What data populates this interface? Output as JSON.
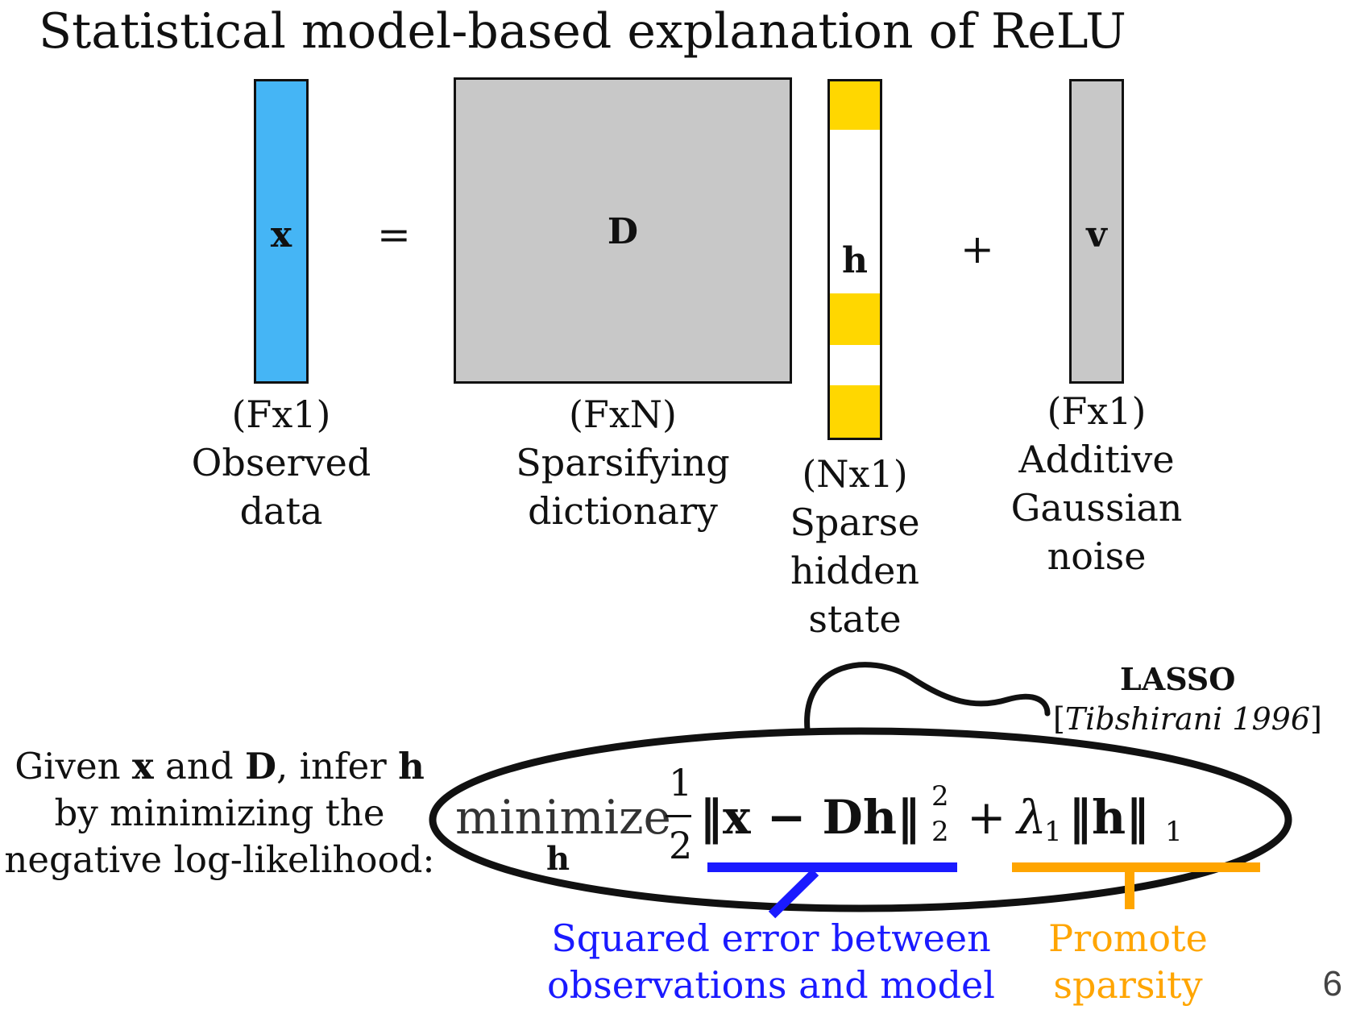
{
  "title": "Statistical model-based explanation of ReLU",
  "equation": {
    "x_label": "x",
    "equals": "=",
    "D_label": "D",
    "h_label": "h",
    "plus": "+",
    "v_label": "v"
  },
  "captions": {
    "x": {
      "dim": "(Fx1)",
      "line1": "Observed",
      "line2": "data"
    },
    "D": {
      "dim": "(FxN)",
      "line1": "Sparsifying",
      "line2": "dictionary"
    },
    "h": {
      "dim": "(Nx1)",
      "line1": "Sparse",
      "line2": "hidden",
      "line3": "state"
    },
    "v": {
      "dim": "(Fx1)",
      "line1": "Additive",
      "line2": "Gaussian",
      "line3": "noise"
    }
  },
  "given_text": {
    "given": "Given ",
    "x": "x",
    "and": " and ",
    "D": "D",
    "infer": ", infer ",
    "h": "h",
    "line2": "by minimizing the",
    "line3": "negative log-likelihood:"
  },
  "objective": {
    "minimize": "minimize",
    "subscript": "h",
    "frac_num": "1",
    "frac_den": "2",
    "term1": "‖x − Dh‖",
    "term1_sup": "2",
    "term1_sub": "2",
    "plus": "+",
    "lambda": "λ",
    "lambda_sub": "1",
    "term2": "‖h‖",
    "term2_sub": "1"
  },
  "annotations": {
    "blue_line1": "Squared error between",
    "blue_line2": "observations and model",
    "orange_line1": "Promote",
    "orange_line2": "sparsity",
    "lasso": "LASSO",
    "cite_open": "[",
    "cite_text": "Tibshirani 1996",
    "cite_close": "]"
  },
  "page_number": "6",
  "colors": {
    "x_fill": "#45b5f5",
    "D_fill": "#c8c8c8",
    "v_fill": "#c8c8c8",
    "h_yellow": "#ffd700",
    "blue": "#1a1aff",
    "orange": "#ffa500"
  }
}
